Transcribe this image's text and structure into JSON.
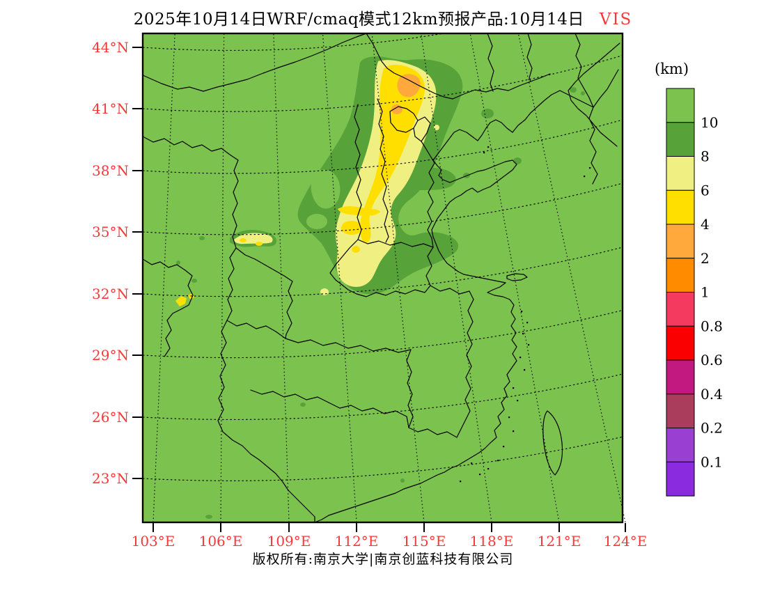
{
  "title": {
    "text": "2025年10月14日WRF/cmaq模式12km预报产品:10月14日",
    "highlight": "VIS"
  },
  "footer": {
    "copyright": "版权所有:南京大学|南京创蓝科技有限公司"
  },
  "colorbar": {
    "units": "(km)",
    "labels": [
      "10",
      "8",
      "6",
      "4",
      "2",
      "1",
      "0.8",
      "0.6",
      "0.4",
      "0.2",
      "0.1"
    ],
    "colors": [
      "#7cc24e",
      "#58a23a",
      "#f0ef82",
      "#ffdf00",
      "#ffa93c",
      "#ff8c00",
      "#f43a5e",
      "#fb0000",
      "#c21980",
      "#aa3c5c",
      "#9940d2",
      "#8a2be0"
    ]
  },
  "axes": {
    "lat_labels": [
      "44°N",
      "41°N",
      "38°N",
      "35°N",
      "32°N",
      "29°N",
      "26°N",
      "23°N"
    ],
    "lon_labels": [
      "103°E",
      "106°E",
      "109°E",
      "112°E",
      "115°E",
      "118°E",
      "121°E",
      "124°E"
    ],
    "label_color": "#f83838"
  },
  "chart_data": {
    "type": "map",
    "variable": "VIS",
    "units": "km",
    "model": "WRF/cmaq 12km",
    "valid_date": "2025-10-14",
    "domain": {
      "lon_ticks": [
        103,
        106,
        109,
        112,
        115,
        118,
        121,
        124
      ],
      "lat_ticks": [
        44,
        41,
        38,
        35,
        32,
        29,
        26,
        23
      ]
    },
    "scale_levels": [
      0.1,
      0.2,
      0.4,
      0.6,
      0.8,
      1,
      2,
      4,
      6,
      8,
      10
    ],
    "summary": "Background visibility >10 km (light green); reduced visibility band 4-8 km (yellows) stretching ~112-117E from 42N to 33N with 2-4 km (orange) cores near 41N,114E; 8-10 km (dark green) fringes; small reduced patches near 107E,34N and 104.5E,32N."
  }
}
